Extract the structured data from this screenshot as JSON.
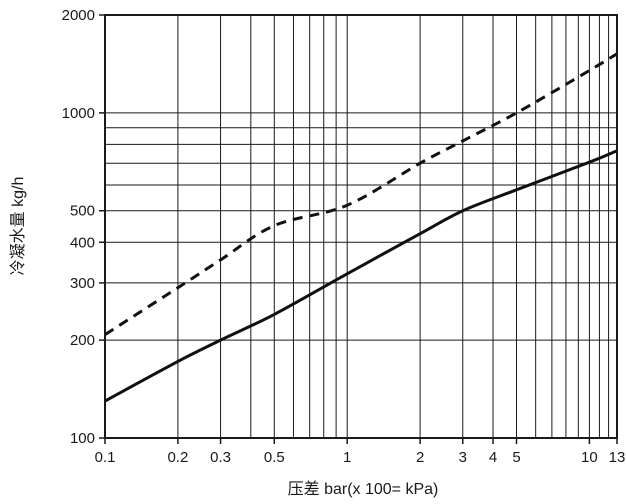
{
  "chart_data": {
    "type": "line",
    "xscale": "log",
    "yscale": "log",
    "xlim": [
      0.1,
      13
    ],
    "ylim": [
      100,
      2000
    ],
    "grid": true,
    "xlabel": "压差 bar(x 100= kPa)",
    "ylabel": "冷凝水量 kg/h",
    "x_ticks": [
      {
        "value": 0.1,
        "label": "0.1"
      },
      {
        "value": 0.2,
        "label": "0.2"
      },
      {
        "value": 0.3,
        "label": "0.3"
      },
      {
        "value": 0.5,
        "label": "0.5"
      },
      {
        "value": 1,
        "label": "1"
      },
      {
        "value": 2,
        "label": "2"
      },
      {
        "value": 3,
        "label": "3"
      },
      {
        "value": 4,
        "label": "4"
      },
      {
        "value": 5,
        "label": "5"
      },
      {
        "value": 10,
        "label": "10"
      },
      {
        "value": 13,
        "label": "13"
      }
    ],
    "y_ticks": [
      {
        "value": 100,
        "label": "100"
      },
      {
        "value": 200,
        "label": "200"
      },
      {
        "value": 300,
        "label": "300"
      },
      {
        "value": 400,
        "label": "400"
      },
      {
        "value": 500,
        "label": "500"
      },
      {
        "value": 1000,
        "label": "1000"
      },
      {
        "value": 2000,
        "label": "2000"
      }
    ],
    "x_gridlines": [
      0.2,
      0.3,
      0.4,
      0.5,
      0.6,
      0.7,
      0.8,
      0.9,
      1,
      2,
      3,
      4,
      5,
      6,
      7,
      8,
      9,
      10,
      11,
      12
    ],
    "y_gridlines": [
      200,
      300,
      400,
      500,
      600,
      700,
      800,
      900,
      1000
    ],
    "series": [
      {
        "style": "dashed",
        "x": [
          0.1,
          0.2,
          0.3,
          0.5,
          1,
          2,
          3,
          5,
          10,
          13
        ],
        "y": [
          208,
          290,
          353,
          450,
          520,
          700,
          820,
          1000,
          1350,
          1520
        ]
      },
      {
        "style": "solid",
        "x": [
          0.1,
          0.2,
          0.3,
          0.5,
          1,
          2,
          3,
          5,
          10,
          13
        ],
        "y": [
          130,
          172,
          200,
          240,
          320,
          425,
          500,
          580,
          705,
          765
        ]
      }
    ]
  }
}
